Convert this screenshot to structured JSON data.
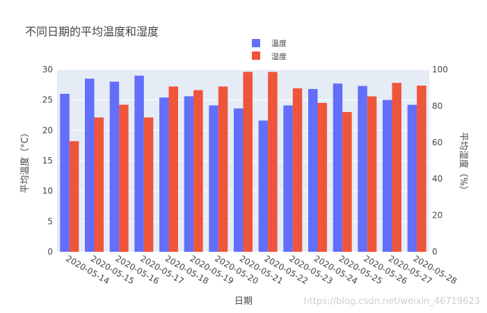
{
  "chart_data": {
    "type": "bar",
    "title": "不同日期的平均温度和湿度",
    "xlabel": "日期",
    "ylabel_left": "平均温度（°C）",
    "ylabel_right": "平均湿度（%）",
    "ylim_left": [
      0,
      30
    ],
    "ylim_right": [
      0,
      100
    ],
    "left_ticks": [
      0,
      5,
      10,
      15,
      20,
      25,
      30
    ],
    "right_ticks": [
      0,
      20,
      40,
      60,
      80,
      100
    ],
    "categories": [
      "2020-05-14",
      "2020-05-15",
      "2020-05-16",
      "2020-05-17",
      "2020-05-18",
      "2020-05-19",
      "2020-05-20",
      "2020-05-21",
      "2020-05-22",
      "2020-05-23",
      "2020-05-24",
      "2020-05-25",
      "2020-05-26",
      "2020-05-27",
      "2020-05-28"
    ],
    "legend_position": "top-center",
    "grid": true,
    "series": [
      {
        "name": "温度",
        "axis": "left",
        "color": "#636efa",
        "values": [
          26.0,
          28.5,
          28.0,
          29.0,
          25.4,
          25.6,
          24.1,
          23.6,
          21.6,
          24.1,
          26.8,
          27.7,
          27.3,
          25.0,
          24.2
        ]
      },
      {
        "name": "湿度",
        "axis": "right",
        "color": "#ef553b",
        "values": [
          60.7,
          73.7,
          80.7,
          73.7,
          90.7,
          88.7,
          90.7,
          98.7,
          98.7,
          89.7,
          81.7,
          76.7,
          85.3,
          92.7,
          91.2
        ]
      }
    ]
  },
  "watermark": "https://blog.csdn.net/weixin_46719623",
  "colors": {
    "plot_bg": "#e5ecf6",
    "text": "#444444"
  }
}
